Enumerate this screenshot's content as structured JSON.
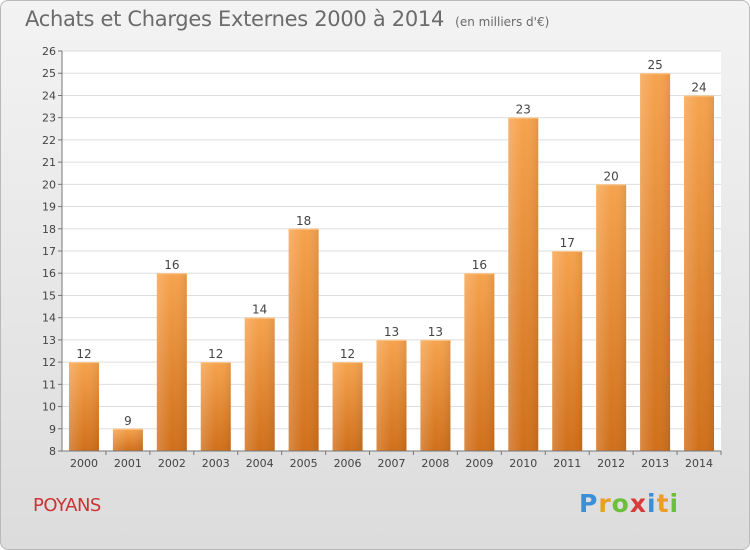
{
  "title": "Achats et Charges Externes 2000 à 2014",
  "unit": "(en milliers d'€)",
  "place": "POYANS",
  "brand": {
    "text": "Proxiti",
    "letters": [
      "P",
      "r",
      "o",
      "x",
      "i",
      "t",
      "i"
    ],
    "colors": [
      "#3a8fd6",
      "#e8a020",
      "#6cbf3a",
      "#d83a3a",
      "#3a8fd6",
      "#e8a020",
      "#6cbf3a"
    ]
  },
  "chart_data": {
    "type": "bar",
    "categories": [
      "2000",
      "2001",
      "2002",
      "2003",
      "2004",
      "2005",
      "2006",
      "2007",
      "2008",
      "2009",
      "2010",
      "2011",
      "2012",
      "2013",
      "2014"
    ],
    "values": [
      12,
      9,
      16,
      12,
      14,
      18,
      12,
      13,
      13,
      16,
      23,
      17,
      20,
      25,
      24
    ],
    "ylim": [
      8,
      26
    ],
    "yticks": [
      8,
      9,
      10,
      11,
      12,
      13,
      14,
      15,
      16,
      17,
      18,
      19,
      20,
      21,
      22,
      23,
      24,
      25,
      26
    ],
    "grid": true,
    "data_labels": true,
    "bar_color_top": "#f6a34e",
    "bar_color_bottom": "#d06f1a"
  }
}
